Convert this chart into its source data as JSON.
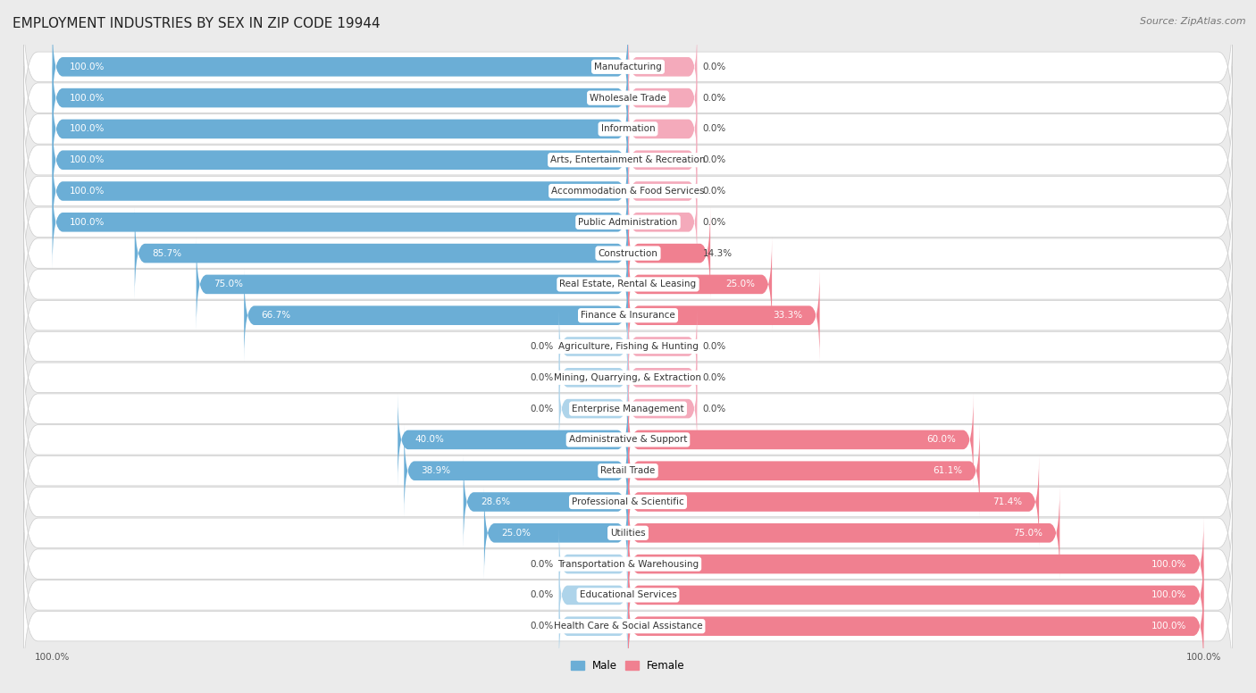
{
  "title": "EMPLOYMENT INDUSTRIES BY SEX IN ZIP CODE 19944",
  "source": "Source: ZipAtlas.com",
  "categories": [
    "Manufacturing",
    "Wholesale Trade",
    "Information",
    "Arts, Entertainment & Recreation",
    "Accommodation & Food Services",
    "Public Administration",
    "Construction",
    "Real Estate, Rental & Leasing",
    "Finance & Insurance",
    "Agriculture, Fishing & Hunting",
    "Mining, Quarrying, & Extraction",
    "Enterprise Management",
    "Administrative & Support",
    "Retail Trade",
    "Professional & Scientific",
    "Utilities",
    "Transportation & Warehousing",
    "Educational Services",
    "Health Care & Social Assistance"
  ],
  "male": [
    100.0,
    100.0,
    100.0,
    100.0,
    100.0,
    100.0,
    85.7,
    75.0,
    66.7,
    0.0,
    0.0,
    0.0,
    40.0,
    38.9,
    28.6,
    25.0,
    0.0,
    0.0,
    0.0
  ],
  "female": [
    0.0,
    0.0,
    0.0,
    0.0,
    0.0,
    0.0,
    14.3,
    25.0,
    33.3,
    0.0,
    0.0,
    0.0,
    60.0,
    61.1,
    71.4,
    75.0,
    100.0,
    100.0,
    100.0
  ],
  "male_color": "#6BAED6",
  "female_color": "#F08090",
  "male_color_light": "#AED4EA",
  "female_color_light": "#F4AABB",
  "row_bg": "#FFFFFF",
  "page_bg": "#EBEBEB",
  "title_fontsize": 11,
  "source_fontsize": 8,
  "label_fontsize": 7.5,
  "pct_fontsize": 7.5,
  "legend_fontsize": 8.5
}
